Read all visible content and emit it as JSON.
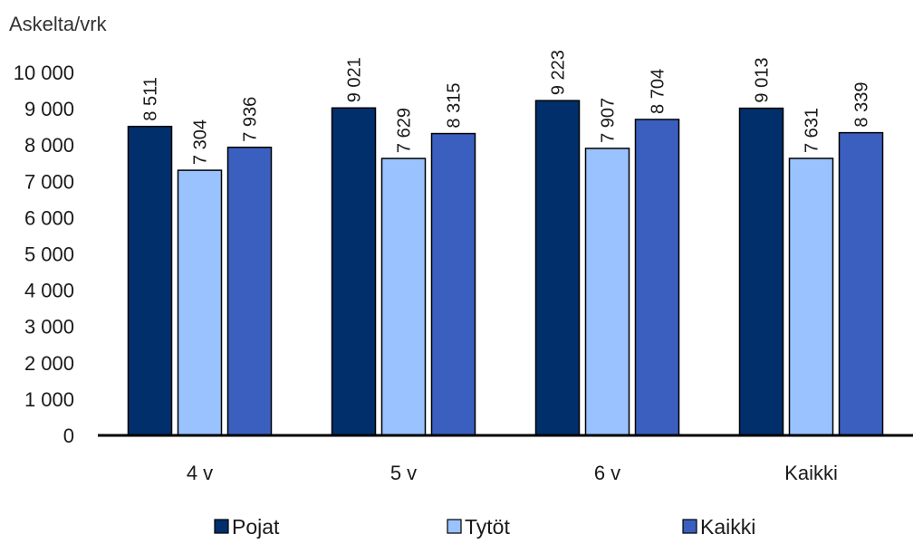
{
  "chart_data": {
    "type": "bar",
    "ylabel": "Askelta/vrk",
    "ylim": [
      0,
      10000
    ],
    "yticks": [
      0,
      1000,
      2000,
      3000,
      4000,
      5000,
      6000,
      7000,
      8000,
      9000,
      10000
    ],
    "ytick_labels": [
      "0",
      "1 000",
      "2 000",
      "3 000",
      "4 000",
      "5 000",
      "6 000",
      "7 000",
      "8 000",
      "9 000",
      "10 000"
    ],
    "categories": [
      "4 v",
      "5 v",
      "6 v",
      "Kaikki"
    ],
    "series": [
      {
        "name": "Pojat",
        "color": "#002f6c",
        "values": [
          8511,
          9021,
          9223,
          9013
        ],
        "labels": [
          "8 511",
          "9 021",
          "9 223",
          "9 013"
        ]
      },
      {
        "name": "Tytöt",
        "color": "#99c2ff",
        "values": [
          7304,
          7629,
          7907,
          7631
        ],
        "labels": [
          "7 304",
          "7 629",
          "7 907",
          "7 631"
        ]
      },
      {
        "name": "Kaikki",
        "color": "#3a5fbf",
        "values": [
          7936,
          8315,
          8704,
          8339
        ],
        "labels": [
          "7 936",
          "8 315",
          "8 704",
          "8 339"
        ]
      }
    ],
    "grid": false,
    "legend_position": "bottom"
  }
}
